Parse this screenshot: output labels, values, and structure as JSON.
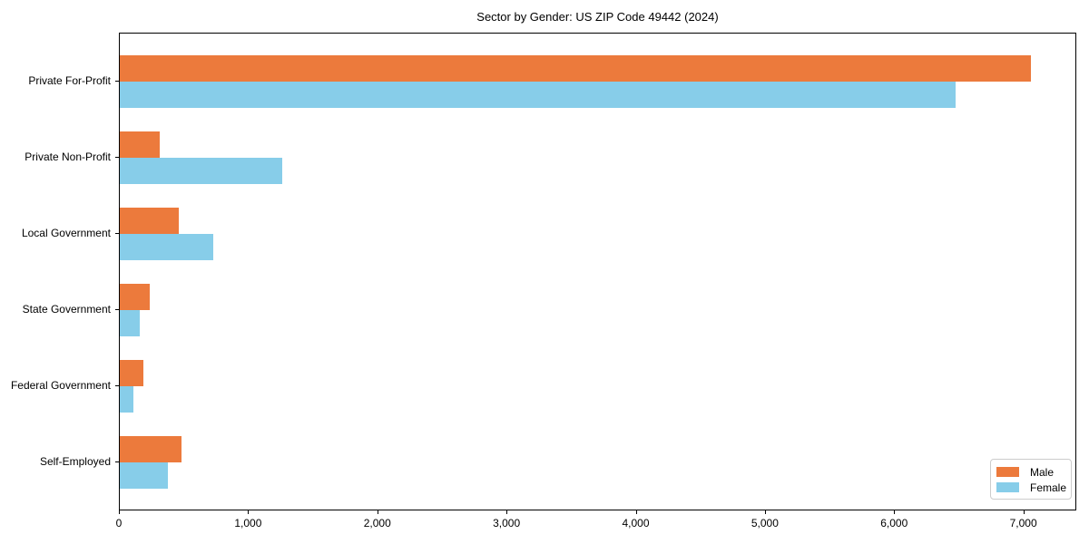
{
  "chart_data": {
    "type": "bar",
    "orientation": "horizontal",
    "title": "Sector by Gender: US ZIP Code 49442 (2024)",
    "categories": [
      "Private For-Profit",
      "Private Non-Profit",
      "Local Government",
      "State Government",
      "Federal Government",
      "Self-Employed"
    ],
    "series": [
      {
        "name": "Male",
        "color": "#ec7a3c",
        "values": [
          7050,
          310,
          455,
          235,
          180,
          480
        ]
      },
      {
        "name": "Female",
        "color": "#87cde9",
        "values": [
          6470,
          1260,
          725,
          155,
          105,
          370
        ]
      }
    ],
    "xlabel": "",
    "ylabel": "",
    "xlim": [
      0,
      7410
    ],
    "xticks": [
      0,
      1000,
      2000,
      3000,
      4000,
      5000,
      6000,
      7000
    ],
    "xtick_labels": [
      "0",
      "1,000",
      "2,000",
      "3,000",
      "4,000",
      "5,000",
      "6,000",
      "7,000"
    ],
    "grid": false,
    "legend": {
      "position": "lower right",
      "entries": [
        "Male",
        "Female"
      ]
    }
  },
  "colors": {
    "background": "#ffffff",
    "spine": "#000000",
    "text": "#000000",
    "legend_border": "#cccccc"
  }
}
